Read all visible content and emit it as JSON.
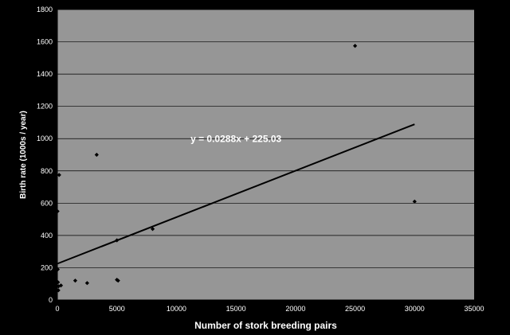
{
  "chart_data": {
    "type": "scatter",
    "title": "",
    "xlabel": "Number of stork breeding pairs",
    "ylabel": "Birth rate (1000s / year)",
    "xlim": [
      0,
      35000
    ],
    "ylim": [
      0,
      1800
    ],
    "xticks": [
      "0",
      "5000",
      "10000",
      "15000",
      "20000",
      "25000",
      "30000",
      "35000"
    ],
    "yticks": [
      "0",
      "200",
      "400",
      "600",
      "800",
      "1000",
      "1200",
      "1400",
      "1600",
      "1800"
    ],
    "grid": {
      "horizontal": true,
      "vertical": false
    },
    "legend": "none",
    "series": [
      {
        "points": [
          {
            "x": 10,
            "y": 550
          },
          {
            "x": 30,
            "y": 190
          },
          {
            "x": 50,
            "y": 110
          },
          {
            "x": 80,
            "y": 60
          },
          {
            "x": 100,
            "y": 85
          },
          {
            "x": 150,
            "y": 775
          },
          {
            "x": 300,
            "y": 90
          },
          {
            "x": 1500,
            "y": 120
          },
          {
            "x": 2500,
            "y": 105
          },
          {
            "x": 3300,
            "y": 900
          },
          {
            "x": 5000,
            "y": 125
          },
          {
            "x": 5100,
            "y": 120
          },
          {
            "x": 5000,
            "y": 370
          },
          {
            "x": 8000,
            "y": 440
          },
          {
            "x": 25000,
            "y": 1575
          },
          {
            "x": 30000,
            "y": 610
          }
        ]
      }
    ],
    "trendline": {
      "slope": 0.0288,
      "intercept": 225.03,
      "x_range": [
        0,
        30000
      ],
      "label": "y = 0.0288x + 225.03",
      "label_anchor": {
        "x": 15000,
        "y": 980
      }
    },
    "colors": {
      "background": "#000000",
      "plot_area": "#969696",
      "grid": "#000000",
      "points": "#000000",
      "trendline": "#000000",
      "text": "#ffffff"
    }
  }
}
